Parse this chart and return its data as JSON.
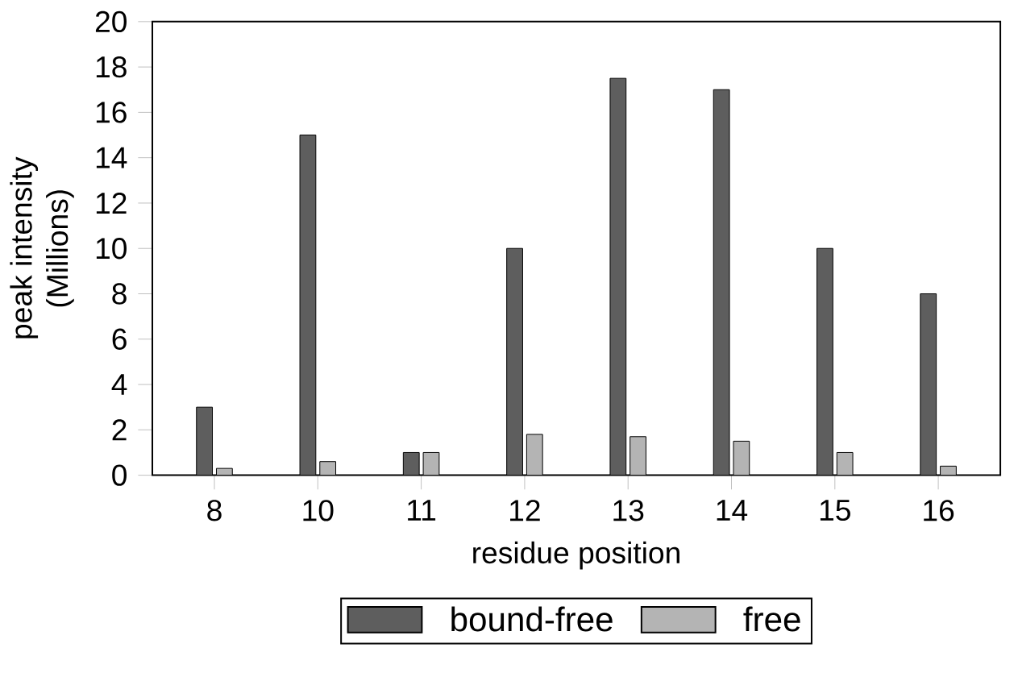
{
  "chart_data": {
    "type": "bar",
    "xlabel": "residue position",
    "ylabel": "peak intensity\n(Millions)",
    "categories": [
      "8",
      "10",
      "11",
      "12",
      "13",
      "14",
      "15",
      "16"
    ],
    "series": [
      {
        "name": "bound-free",
        "color": "#5e5e5e",
        "values": [
          3,
          15,
          1,
          10,
          17.5,
          17,
          10,
          8
        ]
      },
      {
        "name": "free",
        "color": "#b4b4b4",
        "values": [
          0.3,
          0.6,
          1,
          1.8,
          1.7,
          1.5,
          1,
          0.4
        ]
      }
    ],
    "ylim": [
      0,
      20
    ],
    "yticks": [
      0,
      2,
      4,
      6,
      8,
      10,
      12,
      14,
      16,
      18,
      20
    ],
    "legend": "bottom"
  }
}
